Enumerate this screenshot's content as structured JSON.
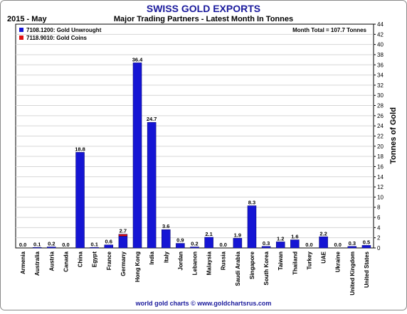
{
  "chart_data": {
    "type": "bar",
    "title": "SWISS GOLD EXPORTS",
    "subtitle": "Major Trading Partners - Latest Month In Tonnes",
    "period": "2015 - May",
    "month_total": "Month Total = 107.7 Tonnes",
    "ylabel": "Tonnes of Gold",
    "xlabel": "",
    "ylim": [
      0,
      44
    ],
    "ytick_step": 2,
    "grid": true,
    "legend_position": "top-left",
    "footer": "world gold charts © www.goldchartsrus.com",
    "categories": [
      "Armenia",
      "Australia",
      "Austria",
      "Canada",
      "China",
      "Egypt",
      "France",
      "Germany",
      "Hong Kong",
      "India",
      "Italy",
      "Jordan",
      "Lebanon",
      "Malaysia",
      "Russia",
      "Saudi Arabia",
      "Singapore",
      "South Korea",
      "Taiwan",
      "Thailand",
      "Turkey",
      "UAE",
      "Ukraine",
      "United Kingdom",
      "United States"
    ],
    "totals": [
      "0.0",
      "0.1",
      "0.2",
      "0.0",
      "18.8",
      "0.1",
      "0.6",
      "2.7",
      "36.4",
      "24.7",
      "3.6",
      "0.9",
      "0.2",
      "2.1",
      "0.0",
      "1.9",
      "8.3",
      "0.3",
      "1.2",
      "1.6",
      "0.0",
      "2.2",
      "0.0",
      "0.3",
      "0.5"
    ],
    "series": [
      {
        "name": "7108.1200: Gold Unwrought",
        "color": "#1515d4",
        "values": [
          0.0,
          0.1,
          0.2,
          0.0,
          18.8,
          0.1,
          0.6,
          2.3,
          36.4,
          24.7,
          3.6,
          0.9,
          0.2,
          2.1,
          0.0,
          1.9,
          8.3,
          0.3,
          1.2,
          1.6,
          0.0,
          2.2,
          0.0,
          0.3,
          0.5
        ]
      },
      {
        "name": "7118.9010: Gold Coins",
        "color": "#e01010",
        "values": [
          0,
          0,
          0,
          0,
          0,
          0,
          0,
          0.4,
          0,
          0,
          0,
          0,
          0,
          0,
          0,
          0,
          0,
          0,
          0,
          0,
          0,
          0,
          0,
          0,
          0
        ]
      }
    ]
  }
}
